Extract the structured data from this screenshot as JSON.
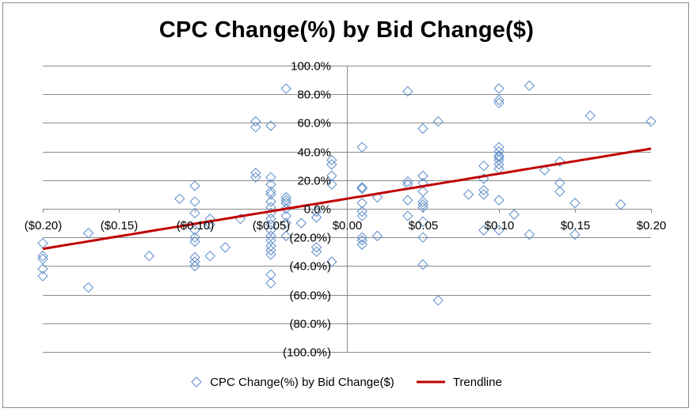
{
  "chart_data": {
    "type": "scatter",
    "title": "CPC Change(%) by Bid Change($)",
    "xlabel": "",
    "ylabel": "",
    "xlim": [
      -0.2,
      0.2
    ],
    "ylim": [
      -1.0,
      1.0
    ],
    "x_ticks": [
      -0.2,
      -0.15,
      -0.1,
      -0.05,
      0.0,
      0.05,
      0.1,
      0.15,
      0.2
    ],
    "x_tick_labels": [
      "($0.20)",
      "($0.15)",
      "($0.10)",
      "($0.05)",
      "$0.00",
      "$0.05",
      "$0.10",
      "$0.15",
      "$0.20"
    ],
    "y_ticks": [
      1.0,
      0.8,
      0.6,
      0.4,
      0.2,
      0.0,
      -0.2,
      -0.4,
      -0.6,
      -0.8,
      -1.0
    ],
    "y_tick_labels": [
      "100.0%",
      "80.0%",
      "60.0%",
      "40.0%",
      "20.0%",
      "0.0%",
      "(20.0%)",
      "(40.0%)",
      "(60.0%)",
      "(80.0%)",
      "(100.0%)"
    ],
    "grid": true,
    "legend_position": "bottom",
    "series": [
      {
        "name": "CPC Change(%) by Bid Change($)",
        "marker": "diamond-open",
        "color": "#5b8bc9",
        "points": [
          [
            -0.2,
            -0.24
          ],
          [
            -0.2,
            -0.33
          ],
          [
            -0.2,
            -0.35
          ],
          [
            -0.2,
            -0.42
          ],
          [
            -0.2,
            -0.47
          ],
          [
            -0.17,
            -0.17
          ],
          [
            -0.17,
            -0.55
          ],
          [
            -0.13,
            -0.33
          ],
          [
            -0.11,
            0.07
          ],
          [
            -0.1,
            0.16
          ],
          [
            -0.1,
            0.05
          ],
          [
            -0.1,
            -0.03
          ],
          [
            -0.1,
            -0.15
          ],
          [
            -0.1,
            -0.2
          ],
          [
            -0.1,
            -0.23
          ],
          [
            -0.1,
            -0.34
          ],
          [
            -0.1,
            -0.37
          ],
          [
            -0.1,
            -0.4
          ],
          [
            -0.09,
            -0.07
          ],
          [
            -0.09,
            -0.11
          ],
          [
            -0.09,
            -0.33
          ],
          [
            -0.08,
            -0.27
          ],
          [
            -0.07,
            -0.07
          ],
          [
            -0.06,
            0.61
          ],
          [
            -0.06,
            0.57
          ],
          [
            -0.06,
            0.25
          ],
          [
            -0.06,
            0.22
          ],
          [
            -0.05,
            0.58
          ],
          [
            -0.05,
            0.22
          ],
          [
            -0.05,
            0.17
          ],
          [
            -0.05,
            0.12
          ],
          [
            -0.05,
            0.1
          ],
          [
            -0.05,
            0.05
          ],
          [
            -0.05,
            0.01
          ],
          [
            -0.05,
            -0.03
          ],
          [
            -0.05,
            -0.07
          ],
          [
            -0.05,
            -0.11
          ],
          [
            -0.05,
            -0.15
          ],
          [
            -0.05,
            -0.19
          ],
          [
            -0.05,
            -0.22
          ],
          [
            -0.05,
            -0.26
          ],
          [
            -0.05,
            -0.29
          ],
          [
            -0.05,
            -0.32
          ],
          [
            -0.05,
            -0.46
          ],
          [
            -0.05,
            -0.52
          ],
          [
            -0.04,
            0.84
          ],
          [
            -0.04,
            0.08
          ],
          [
            -0.04,
            0.06
          ],
          [
            -0.04,
            0.04
          ],
          [
            -0.04,
            0.0
          ],
          [
            -0.04,
            -0.05
          ],
          [
            -0.04,
            -0.1
          ],
          [
            -0.04,
            -0.19
          ],
          [
            -0.03,
            -0.1
          ],
          [
            -0.02,
            -0.02
          ],
          [
            -0.02,
            -0.06
          ],
          [
            -0.02,
            -0.27
          ],
          [
            -0.02,
            -0.3
          ],
          [
            -0.01,
            0.34
          ],
          [
            -0.01,
            0.31
          ],
          [
            -0.01,
            0.23
          ],
          [
            -0.01,
            0.17
          ],
          [
            -0.01,
            -0.37
          ],
          [
            0.01,
            0.43
          ],
          [
            0.01,
            0.15
          ],
          [
            0.01,
            0.14
          ],
          [
            0.01,
            0.04
          ],
          [
            0.01,
            -0.02
          ],
          [
            0.01,
            -0.05
          ],
          [
            0.01,
            -0.2
          ],
          [
            0.01,
            -0.22
          ],
          [
            0.01,
            -0.25
          ],
          [
            0.02,
            0.08
          ],
          [
            0.02,
            -0.19
          ],
          [
            0.04,
            0.82
          ],
          [
            0.04,
            0.19
          ],
          [
            0.04,
            0.17
          ],
          [
            0.04,
            0.06
          ],
          [
            0.04,
            -0.05
          ],
          [
            0.05,
            0.56
          ],
          [
            0.05,
            0.23
          ],
          [
            0.05,
            0.18
          ],
          [
            0.05,
            0.12
          ],
          [
            0.05,
            0.05
          ],
          [
            0.05,
            0.03
          ],
          [
            0.05,
            0.01
          ],
          [
            0.05,
            -0.09
          ],
          [
            0.05,
            -0.2
          ],
          [
            0.05,
            -0.39
          ],
          [
            0.06,
            0.61
          ],
          [
            0.06,
            -0.64
          ],
          [
            0.08,
            0.1
          ],
          [
            0.09,
            0.3
          ],
          [
            0.09,
            0.21
          ],
          [
            0.09,
            0.13
          ],
          [
            0.09,
            0.1
          ],
          [
            0.09,
            -0.15
          ],
          [
            0.1,
            0.84
          ],
          [
            0.1,
            0.76
          ],
          [
            0.1,
            0.74
          ],
          [
            0.1,
            0.43
          ],
          [
            0.1,
            0.4
          ],
          [
            0.1,
            0.37
          ],
          [
            0.1,
            0.36
          ],
          [
            0.1,
            0.34
          ],
          [
            0.1,
            0.31
          ],
          [
            0.1,
            0.28
          ],
          [
            0.1,
            0.06
          ],
          [
            0.1,
            -0.15
          ],
          [
            0.11,
            -0.04
          ],
          [
            0.12,
            0.86
          ],
          [
            0.12,
            -0.18
          ],
          [
            0.13,
            0.27
          ],
          [
            0.14,
            0.33
          ],
          [
            0.14,
            0.18
          ],
          [
            0.14,
            0.12
          ],
          [
            0.15,
            0.04
          ],
          [
            0.15,
            -0.18
          ],
          [
            0.16,
            0.65
          ],
          [
            0.18,
            0.03
          ],
          [
            0.2,
            0.61
          ]
        ]
      },
      {
        "name": "Trendline",
        "type": "line",
        "color": "#c00000",
        "points": [
          [
            -0.2,
            -0.28
          ],
          [
            0.2,
            0.42
          ]
        ]
      }
    ]
  },
  "legend": {
    "items": [
      "CPC Change(%) by Bid Change($)",
      "Trendline"
    ]
  }
}
